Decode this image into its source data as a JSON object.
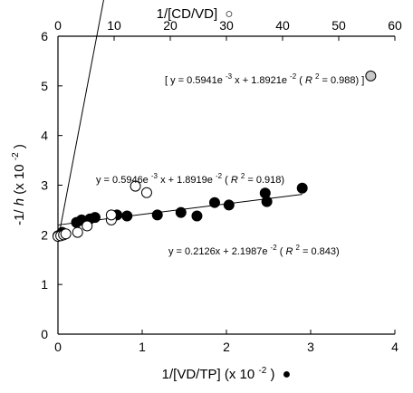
{
  "chart_data": {
    "type": "scatter",
    "xlabel_bottom": "1/[VD/TP] (x 10",
    "xlabel_bottom_exp": "-2",
    "xlabel_bottom_tail": ")",
    "xlabel_bottom_symbol": "●",
    "xlabel_top": "1/[CD/VD]",
    "xlabel_top_symbol": "○",
    "ylabel_pre": "-1/",
    "ylabel_var": "h",
    "ylabel_mid": " (x 10",
    "ylabel_exp": "-2",
    "ylabel_tail": ")",
    "x_bottom_range": [
      0,
      4
    ],
    "x_bottom_ticks": [
      "0",
      "1",
      "2",
      "3",
      "4"
    ],
    "x_top_range": [
      0,
      60
    ],
    "x_top_ticks": [
      "0",
      "10",
      "20",
      "30",
      "40",
      "50",
      "60"
    ],
    "y_range": [
      0,
      6
    ],
    "y_ticks": [
      "0",
      "1",
      "2",
      "3",
      "4",
      "5",
      "6"
    ],
    "grid": false,
    "series": [
      {
        "marker": "filled-circle",
        "axis": "bottom",
        "points": [
          [
            0.0,
            1.98
          ],
          [
            0.05,
            2.05
          ],
          [
            0.22,
            2.25
          ],
          [
            0.28,
            2.3
          ],
          [
            0.38,
            2.32
          ],
          [
            0.44,
            2.35
          ],
          [
            0.7,
            2.4
          ],
          [
            0.82,
            2.38
          ],
          [
            1.18,
            2.4
          ],
          [
            1.46,
            2.45
          ],
          [
            1.65,
            2.38
          ],
          [
            1.86,
            2.65
          ],
          [
            2.03,
            2.6
          ],
          [
            2.46,
            2.84
          ],
          [
            2.48,
            2.67
          ],
          [
            2.9,
            2.94
          ]
        ],
        "fit": {
          "slope": 0.2126,
          "intercept": 2.1987,
          "x_end": 2.9
        }
      },
      {
        "marker": "open-circle",
        "axis": "top",
        "points": [
          [
            0.0,
            1.97
          ],
          [
            0.5,
            1.98
          ],
          [
            1.0,
            2.0
          ],
          [
            1.4,
            2.02
          ],
          [
            3.5,
            2.05
          ],
          [
            5.2,
            2.18
          ],
          [
            9.5,
            2.3
          ],
          [
            9.5,
            2.4
          ],
          [
            13.8,
            2.98
          ],
          [
            15.8,
            2.85
          ]
        ],
        "fit": {
          "slope": 0.5946,
          "intercept": 1.8919,
          "x_end": 16.5
        }
      },
      {
        "marker": "gray-circle",
        "axis": "top",
        "points": [
          [
            55.7,
            5.2
          ]
        ],
        "fit": {
          "slope": 0.5941,
          "intercept": 1.8921,
          "x_start": 15.8,
          "x_end": 55.7,
          "dashed": true
        }
      }
    ],
    "annotations": [
      {
        "id": "eq1",
        "parts": [
          "[ y = 0.5941e",
          "-3",
          "x + 1.8921e",
          "-2",
          " (",
          "R",
          "2",
          " = 0.988) ]"
        ]
      },
      {
        "id": "eq2",
        "parts": [
          "y = 0.5946e",
          "-3",
          "x + 1.8919e",
          "-2",
          " (",
          "R",
          "2",
          " = 0.918)"
        ]
      },
      {
        "id": "eq3",
        "parts": [
          "y = 0.2126x + 2.1987e",
          "-2",
          " (",
          "R",
          "2",
          " = 0.843)"
        ]
      }
    ]
  }
}
